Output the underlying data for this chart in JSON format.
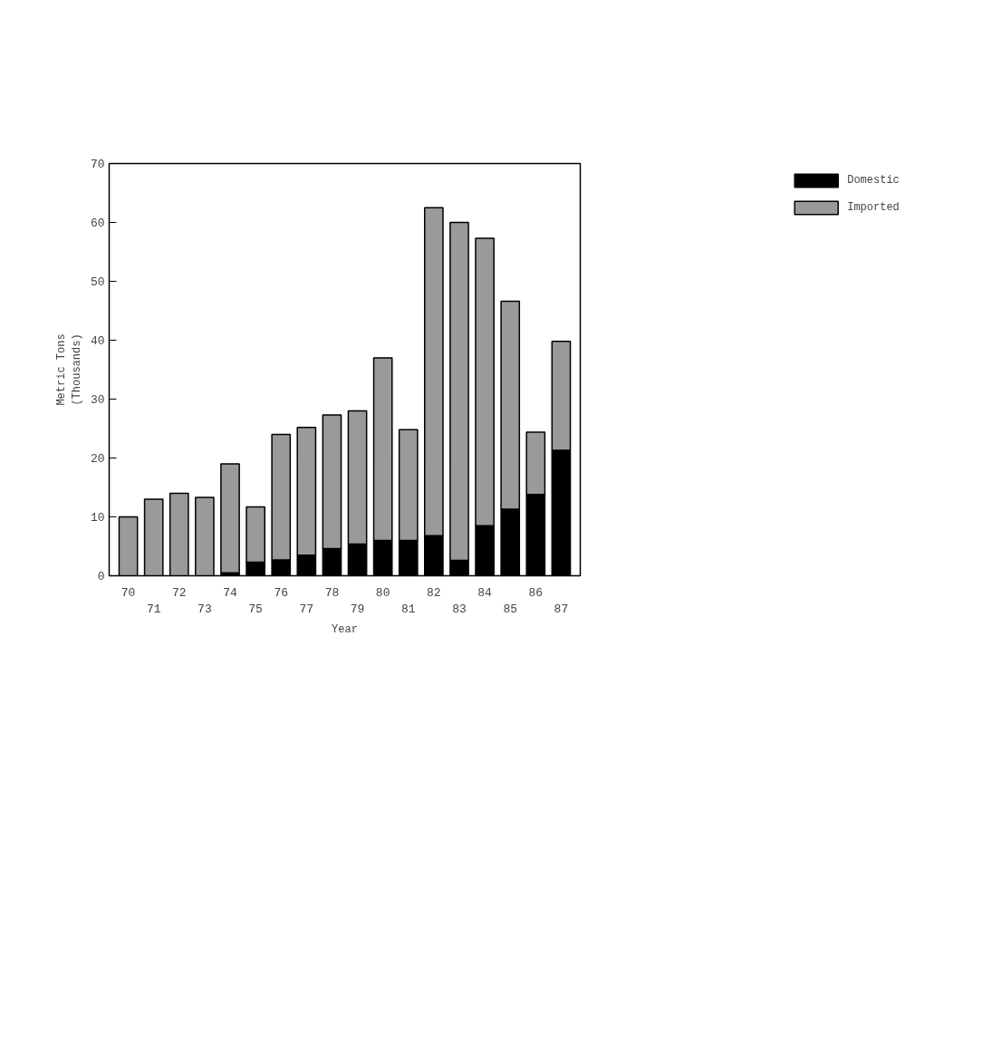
{
  "chart_data": {
    "type": "bar",
    "stacked": true,
    "xlabel": "Year",
    "ylabel": "Metric Tons\n(Thousands)",
    "categories": [
      "70",
      "71",
      "72",
      "73",
      "74",
      "75",
      "76",
      "77",
      "78",
      "79",
      "80",
      "81",
      "82",
      "83",
      "84",
      "85",
      "86",
      "87"
    ],
    "series": [
      {
        "name": "Domestic",
        "color": "#000000",
        "values": [
          0,
          0,
          0,
          0,
          0.5,
          2.3,
          2.7,
          3.5,
          4.6,
          5.4,
          6,
          6,
          6.8,
          2.6,
          8.5,
          11.3,
          13.8,
          21.3
        ]
      },
      {
        "name": "Imported",
        "color": "#9a9a9a",
        "values": [
          10,
          13,
          14,
          13.3,
          18.5,
          9.4,
          21.3,
          21.7,
          22.7,
          22.6,
          31,
          18.8,
          55.7,
          57.4,
          48.8,
          35.3,
          10.6,
          18.5
        ]
      }
    ],
    "ylim": [
      0,
      70
    ],
    "yticks": [
      0,
      10,
      20,
      30,
      40,
      50,
      60,
      70
    ],
    "grid": false,
    "legend": "top right"
  }
}
